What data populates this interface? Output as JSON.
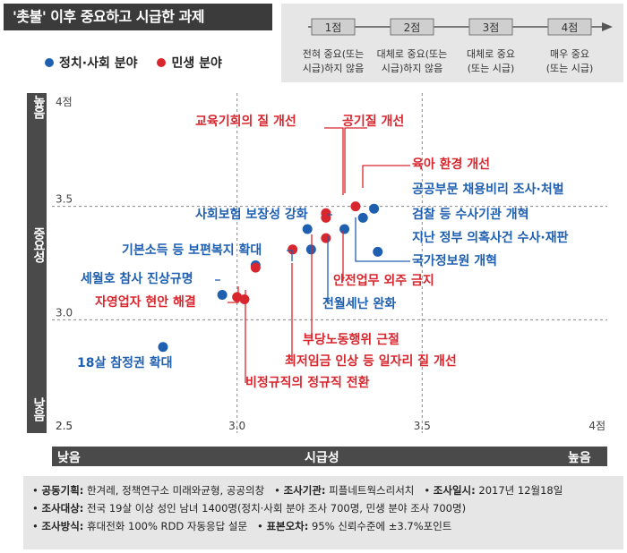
{
  "title": "'촛불' 이후 중요하고 시급한 과제",
  "legend": {
    "political": {
      "label": "정치·사회 분야",
      "color": "#1f5fb0"
    },
    "livelihood": {
      "label": "민생 분야",
      "color": "#d8262e"
    }
  },
  "scale": [
    {
      "point": "1점",
      "desc1": "전혀 중요(또는",
      "desc2": "시급)하지 않음"
    },
    {
      "point": "2점",
      "desc1": "대체로 중요(또는",
      "desc2": "시급)하지 않음"
    },
    {
      "point": "3점",
      "desc1": "대체로 중요",
      "desc2": "(또는 시급)"
    },
    {
      "point": "4점",
      "desc1": "매우 중요",
      "desc2": "(또는 시급)"
    }
  ],
  "axes": {
    "y_label": "중요성",
    "y_high": "높음",
    "y_low": "낮음",
    "x_label": "시급성",
    "x_low": "낮음",
    "x_high": "높음"
  },
  "chart_data": {
    "type": "scatter",
    "xlabel": "시급성",
    "ylabel": "중요성",
    "xlim": [
      2.5,
      4.0
    ],
    "ylim": [
      2.5,
      4.0
    ],
    "x_ticks": [
      "2.5",
      "3.0",
      "3.5",
      "4점"
    ],
    "y_ticks": [
      "4점",
      "3.5",
      "3.0",
      "2.5"
    ],
    "points": [
      {
        "label": "교육기회의 질 개선",
        "category": "livelihood",
        "x": 3.24,
        "y": 3.47
      },
      {
        "label": "공기질 개선",
        "category": "livelihood",
        "x": 3.24,
        "y": 3.45
      },
      {
        "label": "육아 환경 개선",
        "category": "livelihood",
        "x": 3.32,
        "y": 3.5
      },
      {
        "label": "공공부문 채용비리 조사·처벌",
        "category": "political",
        "x": 3.37,
        "y": 3.49
      },
      {
        "label": "검찰 등 수사기관 개혁",
        "category": "political",
        "x": 3.34,
        "y": 3.45
      },
      {
        "label": "사회보험 보장성 강화",
        "category": "political",
        "x": 3.19,
        "y": 3.4
      },
      {
        "label": "국가정보원 개혁",
        "category": "political",
        "x": 3.29,
        "y": 3.4
      },
      {
        "label": "지난 정부 의혹사건 수사·재판",
        "category": "political",
        "x": 3.38,
        "y": 3.3
      },
      {
        "label": "안전업무 외주 금지",
        "category": "livelihood",
        "x": 3.24,
        "y": 3.36
      },
      {
        "label": "전월세난 완화",
        "category": "political",
        "x": 3.2,
        "y": 3.31
      },
      {
        "label": "부당노동행위 근절",
        "category": "livelihood",
        "x": 3.15,
        "y": 3.31
      },
      {
        "label": "기본소득 등 보편복지 확대",
        "category": "political",
        "x": 3.05,
        "y": 3.24
      },
      {
        "label": "최저임금 인상 등 일자리 질 개선",
        "category": "livelihood",
        "x": 3.05,
        "y": 3.23
      },
      {
        "label": "세월호 참사 진상규명",
        "category": "political",
        "x": 2.96,
        "y": 3.11
      },
      {
        "label": "자영업자 현안 해결",
        "category": "livelihood",
        "x": 3.0,
        "y": 3.1
      },
      {
        "label": "비정규직의 정규직 전환",
        "category": "livelihood",
        "x": 3.02,
        "y": 3.09
      },
      {
        "label": "18살 참정권 확대",
        "category": "political",
        "x": 2.8,
        "y": 2.88
      }
    ]
  },
  "footer": {
    "row1": [
      {
        "key": "공동기획:",
        "value": "한겨레, 정책연구소 미래와균형, 공공의창"
      },
      {
        "key": "조사기관:",
        "value": "피플네트웍스리서치"
      },
      {
        "key": "조사일시:",
        "value": "2017년 12월18일"
      }
    ],
    "row2": [
      {
        "key": "조사대상:",
        "value": "전국 19살 이상 성인 남녀 1400명(정치·사회 분야 조사 700명, 민생 분야 조사 700명)"
      }
    ],
    "row3": [
      {
        "key": "조사방식:",
        "value": "휴대전화 100% RDD 자동응답 설문"
      },
      {
        "key": "표본오차:",
        "value": "95% 신뢰수준에 ±3.7%포인트"
      }
    ]
  }
}
